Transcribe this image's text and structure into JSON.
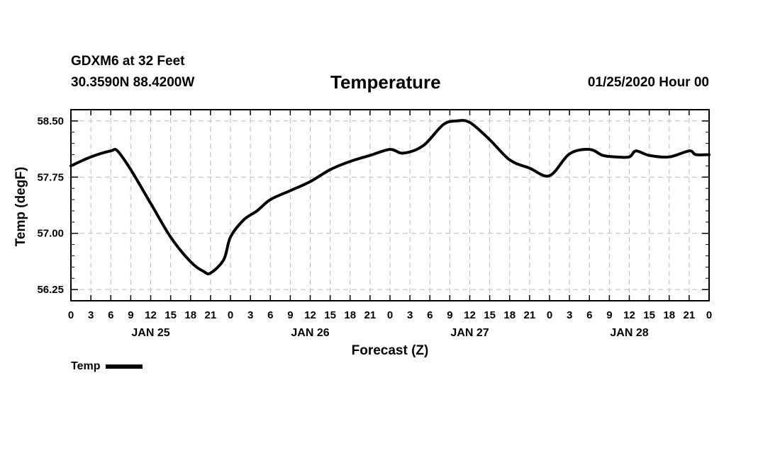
{
  "header": {
    "station": "GDXM6 at 32 Feet",
    "coords": "30.3590N 88.4200W",
    "title": "Temperature",
    "datestamp": "01/25/2020 Hour 00"
  },
  "chart_data": {
    "type": "line",
    "title": "Temperature",
    "xlabel": "Forecast (Z)",
    "ylabel": "Temp (degF)",
    "ylim": [
      56.1,
      58.65
    ],
    "yticks": [
      "58.50",
      "57.75",
      "57.00",
      "56.25"
    ],
    "ytick_values": [
      58.5,
      57.75,
      57.0,
      56.25
    ],
    "xlim": [
      0,
      96
    ],
    "xtick_labels": [
      "0",
      "3",
      "6",
      "9",
      "12",
      "15",
      "18",
      "21",
      "0",
      "3",
      "6",
      "9",
      "12",
      "15",
      "18",
      "21",
      "0",
      "3",
      "6",
      "9",
      "12",
      "15",
      "18",
      "21",
      "0",
      "3",
      "6",
      "9",
      "12",
      "15",
      "18",
      "21",
      "0"
    ],
    "day_labels": [
      {
        "label": "JAN 25",
        "hour": 12
      },
      {
        "label": "JAN 26",
        "hour": 36
      },
      {
        "label": "JAN 27",
        "hour": 60
      },
      {
        "label": "JAN 28",
        "hour": 84
      }
    ],
    "grid": true,
    "legend": "bottom-left",
    "series": [
      {
        "name": "Temp",
        "color": "#000000",
        "x": [
          0,
          3,
          6,
          7,
          9,
          12,
          15,
          18,
          20,
          21,
          23,
          24,
          26,
          28,
          30,
          33,
          36,
          39,
          42,
          45,
          48,
          50,
          53,
          56,
          58,
          60,
          63,
          66,
          69,
          72,
          75,
          78,
          80,
          82,
          84,
          85,
          87,
          90,
          93,
          94,
          96
        ],
        "values": [
          57.9,
          58.02,
          58.1,
          58.1,
          57.85,
          57.4,
          56.95,
          56.62,
          56.49,
          56.47,
          56.65,
          56.95,
          57.18,
          57.3,
          57.45,
          57.57,
          57.69,
          57.85,
          57.96,
          58.04,
          58.12,
          58.07,
          58.17,
          58.45,
          58.5,
          58.48,
          58.25,
          57.98,
          57.87,
          57.77,
          58.06,
          58.12,
          58.04,
          58.02,
          58.02,
          58.1,
          58.04,
          58.02,
          58.1,
          58.05,
          58.05
        ]
      }
    ]
  },
  "legend": {
    "label": "Temp"
  }
}
